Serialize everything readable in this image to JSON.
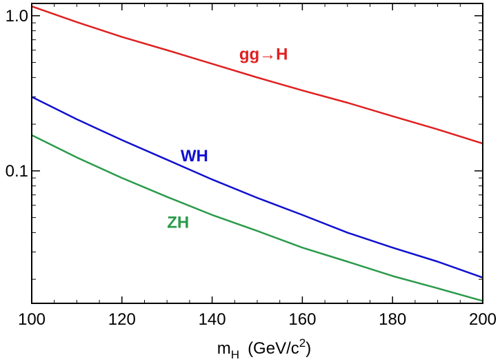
{
  "chart_data": {
    "type": "line",
    "title": "",
    "xlabel": {
      "main": "m",
      "sub": "H",
      "units_pre": "(GeV/c",
      "units_sup": "2",
      "units_post": ")"
    },
    "ylabel": "",
    "xlim": [
      100,
      200
    ],
    "ylim": [
      0.014,
      1.2
    ],
    "yscale": "log",
    "grid": false,
    "x_ticks": [
      100,
      120,
      140,
      160,
      180,
      200
    ],
    "x_tick_labels": [
      "100",
      "120",
      "140",
      "160",
      "180",
      "200"
    ],
    "y_ticks": [
      0.1,
      1.0
    ],
    "y_tick_labels": [
      "0.1",
      "1.0"
    ],
    "series": [
      {
        "name": "gg→H",
        "color": "#e02020",
        "x": [
          100,
          110,
          120,
          130,
          140,
          150,
          160,
          170,
          180,
          190,
          200
        ],
        "y": [
          1.15,
          0.91,
          0.73,
          0.6,
          0.49,
          0.4,
          0.33,
          0.275,
          0.225,
          0.185,
          0.15
        ]
      },
      {
        "name": "WH",
        "color": "#1010d0",
        "x": [
          100,
          110,
          120,
          130,
          140,
          150,
          160,
          170,
          180,
          190,
          200
        ],
        "y": [
          0.3,
          0.215,
          0.158,
          0.118,
          0.088,
          0.067,
          0.052,
          0.04,
          0.032,
          0.026,
          0.0205
        ]
      },
      {
        "name": "ZH",
        "color": "#2a9a4a",
        "x": [
          100,
          110,
          120,
          130,
          140,
          150,
          160,
          170,
          180,
          190,
          200
        ],
        "y": [
          0.17,
          0.122,
          0.09,
          0.068,
          0.052,
          0.041,
          0.032,
          0.026,
          0.021,
          0.0175,
          0.0145
        ]
      }
    ]
  }
}
